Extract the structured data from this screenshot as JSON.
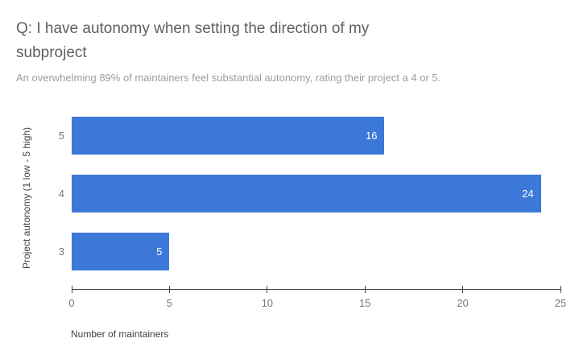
{
  "header": {
    "title": "Q: I have autonomy when setting the direction of my\nsubproject",
    "subtitle": "An overwhelming 89% of maintainers feel substantial autonomy, rating their project a 4 or 5."
  },
  "chart_data": {
    "type": "bar",
    "orientation": "horizontal",
    "title": "Q: I have autonomy when setting the direction of my subproject",
    "subtitle": "An overwhelming 89% of maintainers feel substantial autonomy, rating their project a 4 or 5.",
    "categories": [
      "5",
      "4",
      "3"
    ],
    "values": [
      16,
      24,
      5
    ],
    "xlabel": "Number of maintainers",
    "ylabel": "Project autonomy (1 low - 5 high)",
    "xlim": [
      0,
      25
    ],
    "xticks": [
      0,
      5,
      10,
      15,
      20,
      25
    ],
    "grid": false,
    "legend": "none",
    "colors": {
      "bar": "#3c78d8",
      "bar_value_label": "#ffffff",
      "title": "#5f5f5f",
      "subtitle": "#9e9e9e",
      "tick_label": "#757575",
      "axis_title": "#424242",
      "axis_line": "#424242"
    }
  }
}
